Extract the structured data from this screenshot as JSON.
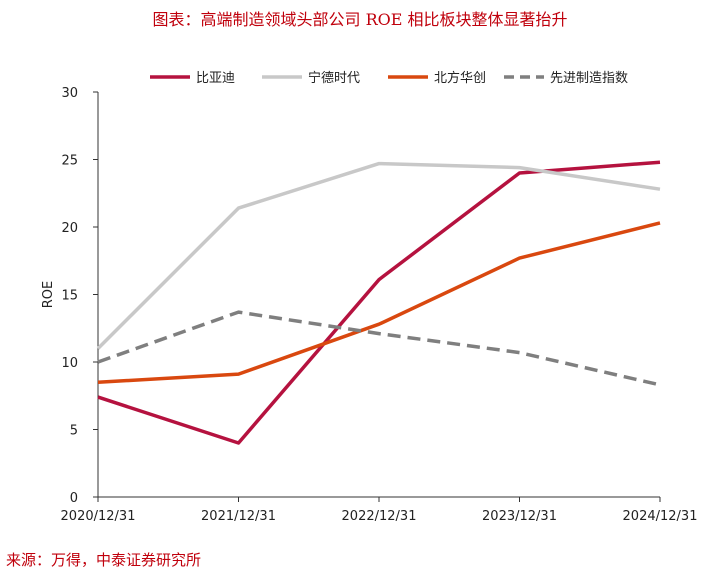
{
  "title": "图表：高端制造领域头部公司 ROE 相比板块整体显著抬升",
  "source": "来源：万得，中泰证券研究所",
  "chart_data": {
    "type": "line",
    "x": [
      "2020/12/31",
      "2021/12/31",
      "2022/12/31",
      "2023/12/31",
      "2024/12/31"
    ],
    "ylabel": "ROE",
    "ylim": [
      0,
      30
    ],
    "yticks": [
      0,
      5,
      10,
      15,
      20,
      25,
      30
    ],
    "grid": false,
    "legend_position": "top",
    "series": [
      {
        "name": "比亚迪",
        "values": [
          7.4,
          4.0,
          16.1,
          24.0,
          24.8
        ],
        "color": "#b5123f",
        "dash": false
      },
      {
        "name": "宁德时代",
        "values": [
          11.0,
          21.4,
          24.7,
          24.4,
          22.8
        ],
        "color": "#c8c8c8",
        "dash": false
      },
      {
        "name": "北方华创",
        "values": [
          8.5,
          9.1,
          12.8,
          17.7,
          20.3
        ],
        "color": "#d9480f",
        "dash": false
      },
      {
        "name": "先进制造指数",
        "values": [
          10.0,
          13.7,
          12.1,
          10.7,
          8.3
        ],
        "color": "#7f7f7f",
        "dash": true
      }
    ]
  }
}
